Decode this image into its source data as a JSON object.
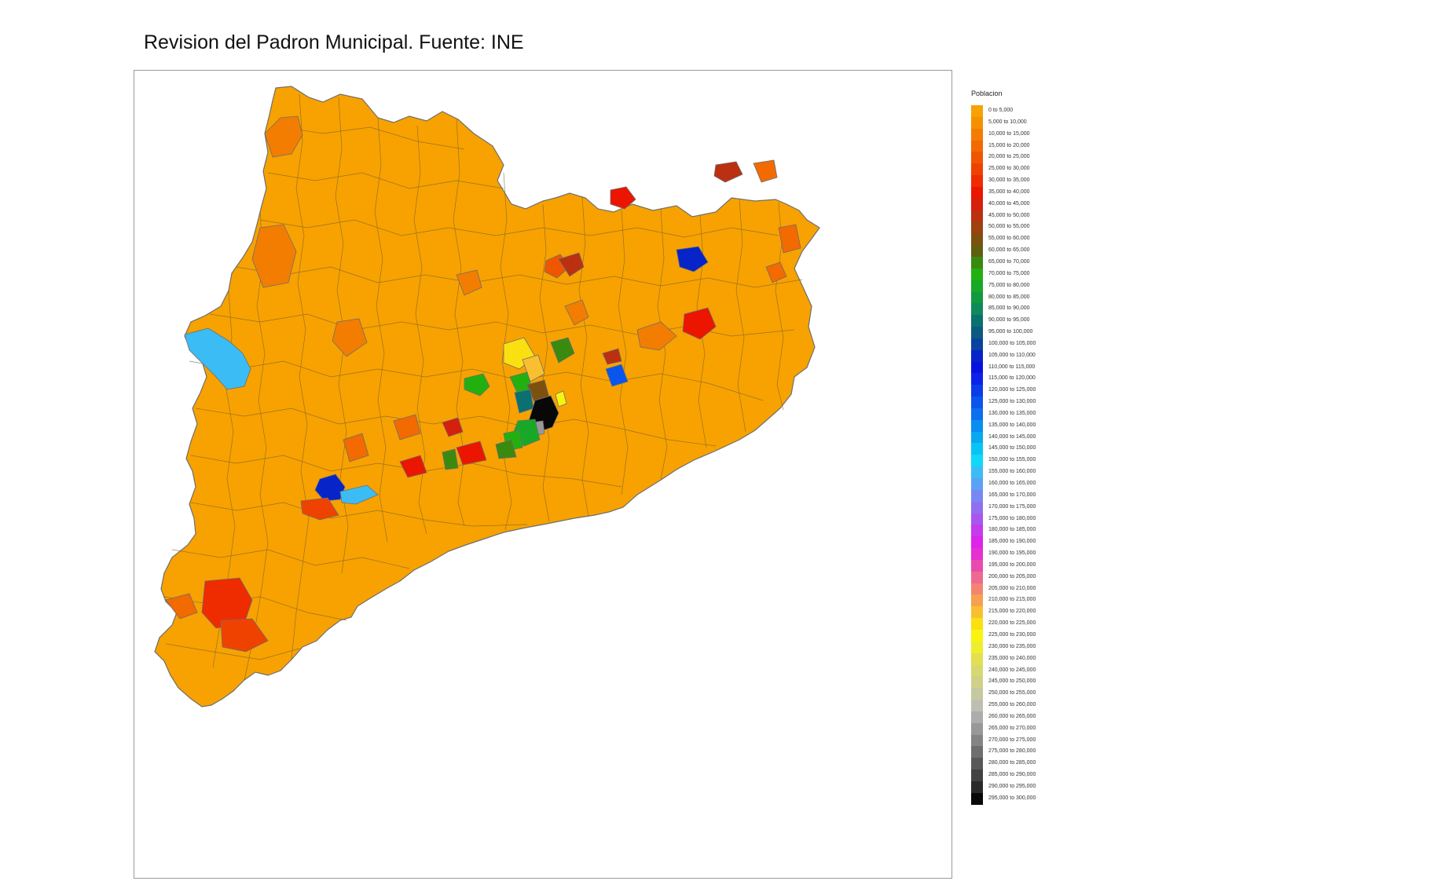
{
  "title": "Revision del Padron Municipal. Fuente: INE",
  "colors": {
    "border": "#6e6e6e",
    "frame": "#9a9a9a",
    "base": "#f7a200"
  },
  "legend": {
    "title": "Poblacion",
    "items": [
      {
        "label": "0 to 5,000",
        "color": "#f7a200"
      },
      {
        "label": "5,000 to 10,000",
        "color": "#f59000"
      },
      {
        "label": "10,000 to 15,000",
        "color": "#f37d00"
      },
      {
        "label": "15,000 to 20,000",
        "color": "#f26a00"
      },
      {
        "label": "20,000 to 25,000",
        "color": "#f05600"
      },
      {
        "label": "25,000 to 30,000",
        "color": "#ef4200"
      },
      {
        "label": "30,000 to 35,000",
        "color": "#ee2c00"
      },
      {
        "label": "35,000 to 40,000",
        "color": "#ec1500"
      },
      {
        "label": "40,000 to 45,000",
        "color": "#d4200c"
      },
      {
        "label": "45,000 to 50,000",
        "color": "#bb3010"
      },
      {
        "label": "50,000 to 55,000",
        "color": "#9e4010"
      },
      {
        "label": "55,000 to 60,000",
        "color": "#7e5010"
      },
      {
        "label": "60,000 to 65,000",
        "color": "#5e6010"
      },
      {
        "label": "65,000 to 70,000",
        "color": "#3a8a10"
      },
      {
        "label": "70,000 to 75,000",
        "color": "#22b010"
      },
      {
        "label": "75,000 to 80,000",
        "color": "#18a828"
      },
      {
        "label": "80,000 to 85,000",
        "color": "#109a40"
      },
      {
        "label": "85,000 to 90,000",
        "color": "#0e8a5a"
      },
      {
        "label": "90,000 to 95,000",
        "color": "#0a7070"
      },
      {
        "label": "95,000 to 100,000",
        "color": "#0c5a80"
      },
      {
        "label": "100,000 to 105,000",
        "color": "#0a42a0"
      },
      {
        "label": "105,000 to 110,000",
        "color": "#0624c8"
      },
      {
        "label": "110,000 to 115,000",
        "color": "#0a10e0"
      },
      {
        "label": "115,000 to 120,000",
        "color": "#0c22ea"
      },
      {
        "label": "120,000 to 125,000",
        "color": "#0c3cea"
      },
      {
        "label": "125,000 to 130,000",
        "color": "#0a56ec"
      },
      {
        "label": "130,000 to 135,000",
        "color": "#0a70ee"
      },
      {
        "label": "135,000 to 140,000",
        "color": "#0a8cf0"
      },
      {
        "label": "140,000 to 145,000",
        "color": "#08a8f2"
      },
      {
        "label": "145,000 to 150,000",
        "color": "#08c4f4"
      },
      {
        "label": "150,000 to 155,000",
        "color": "#10d8f6"
      },
      {
        "label": "155,000 to 160,000",
        "color": "#3cbcf4"
      },
      {
        "label": "160,000 to 165,000",
        "color": "#5aa2f4"
      },
      {
        "label": "165,000 to 170,000",
        "color": "#7888f2"
      },
      {
        "label": "170,000 to 175,000",
        "color": "#9070f0"
      },
      {
        "label": "175,000 to 180,000",
        "color": "#aa56ee"
      },
      {
        "label": "180,000 to 185,000",
        "color": "#c43cec"
      },
      {
        "label": "185,000 to 190,000",
        "color": "#dc24ea"
      },
      {
        "label": "190,000 to 195,000",
        "color": "#e630d0"
      },
      {
        "label": "195,000 to 200,000",
        "color": "#ea4ab0"
      },
      {
        "label": "200,000 to 205,000",
        "color": "#ee6890"
      },
      {
        "label": "205,000 to 210,000",
        "color": "#f28470"
      },
      {
        "label": "210,000 to 215,000",
        "color": "#f6a050"
      },
      {
        "label": "215,000 to 220,000",
        "color": "#f8c030"
      },
      {
        "label": "220,000 to 225,000",
        "color": "#fae010"
      },
      {
        "label": "225,000 to 230,000",
        "color": "#f8f410"
      },
      {
        "label": "230,000 to 235,000",
        "color": "#eeee30"
      },
      {
        "label": "235,000 to 240,000",
        "color": "#e2e050"
      },
      {
        "label": "240,000 to 245,000",
        "color": "#d8d870"
      },
      {
        "label": "245,000 to 250,000",
        "color": "#d0d088"
      },
      {
        "label": "250,000 to 255,000",
        "color": "#c6c8a0"
      },
      {
        "label": "255,000 to 260,000",
        "color": "#bcc0b0"
      },
      {
        "label": "260,000 to 265,000",
        "color": "#acacac"
      },
      {
        "label": "265,000 to 270,000",
        "color": "#989898"
      },
      {
        "label": "270,000 to 275,000",
        "color": "#848484"
      },
      {
        "label": "275,000 to 280,000",
        "color": "#6e6e6e"
      },
      {
        "label": "280,000 to 285,000",
        "color": "#585858"
      },
      {
        "label": "285,000 to 290,000",
        "color": "#424242"
      },
      {
        "label": "290,000 to 295,000",
        "color": "#2a2a2a"
      },
      {
        "label": "295,000 to 300,000",
        "color": "#080808"
      }
    ]
  }
}
